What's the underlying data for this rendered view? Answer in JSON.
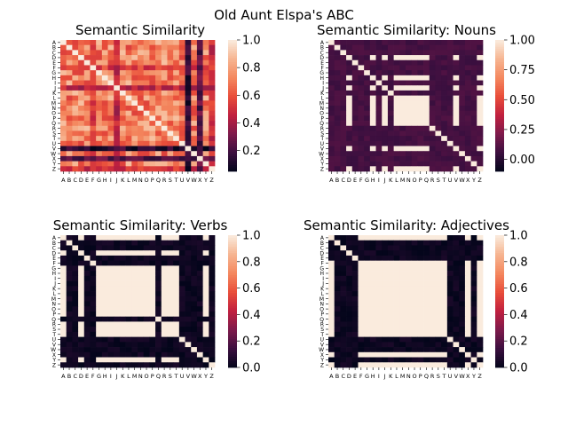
{
  "figure": {
    "title": "Old Aunt Elspa's ABC"
  },
  "letters": [
    "A",
    "B",
    "C",
    "D",
    "E",
    "F",
    "G",
    "H",
    "I",
    "J",
    "K",
    "L",
    "M",
    "N",
    "O",
    "P",
    "Q",
    "R",
    "S",
    "T",
    "U",
    "V",
    "W",
    "X",
    "Y",
    "Z"
  ],
  "colormap": {
    "name": "rocket",
    "stops": [
      "#03051a",
      "#3b0f3f",
      "#7d1a4b",
      "#c1203f",
      "#e94e3a",
      "#f4885f",
      "#f6b591",
      "#faebdd"
    ]
  },
  "chart_data": [
    {
      "type": "heatmap",
      "title": "Semantic Similarity",
      "vmin": 0.05,
      "vmax": 1.0,
      "colorbar_ticks": [
        "0.2",
        "0.4",
        "0.6",
        "0.8",
        "1.0"
      ],
      "colorbar_tick_values": [
        0.2,
        0.4,
        0.6,
        0.8,
        1.0
      ],
      "pattern": "dense",
      "base_value": 0.72,
      "low_rows": {
        "F": 0.55,
        "J": 0.45,
        "V": 0.15,
        "X": 0.25,
        "Z": 0.5
      },
      "diagonal": 1.0
    },
    {
      "type": "heatmap",
      "title": "Semantic Similarity: Nouns",
      "vmin": -0.1,
      "vmax": 1.0,
      "colorbar_ticks": [
        "0.00",
        "0.25",
        "0.50",
        "0.75",
        "1.00"
      ],
      "colorbar_tick_values": [
        0.0,
        0.25,
        0.5,
        0.75,
        1.0
      ],
      "pattern": "block",
      "dark_letters": [
        "A",
        "B",
        "C",
        "E",
        "F",
        "G",
        "I",
        "K",
        "R",
        "S",
        "T",
        "U",
        "W",
        "X",
        "Y"
      ],
      "dark_value": 0.05,
      "light_value": 1.0,
      "diagonal": 1.0
    },
    {
      "type": "heatmap",
      "title": "Semantic Similarity: Verbs",
      "vmin": 0.0,
      "vmax": 1.0,
      "colorbar_ticks": [
        "0.0",
        "0.2",
        "0.4",
        "0.6",
        "0.8",
        "1.0"
      ],
      "colorbar_tick_values": [
        0.0,
        0.2,
        0.4,
        0.6,
        0.8,
        1.0
      ],
      "pattern": "block",
      "dark_letters": [
        "B",
        "C",
        "E",
        "F",
        "Q",
        "U",
        "V",
        "W",
        "X",
        "Z"
      ],
      "dark_value": 0.0,
      "light_value": 1.0,
      "diagonal": 1.0
    },
    {
      "type": "heatmap",
      "title": "Semantic Similarity: Adjectives",
      "vmin": 0.0,
      "vmax": 1.0,
      "colorbar_ticks": [
        "0.0",
        "0.2",
        "0.4",
        "0.6",
        "0.8",
        "1.0"
      ],
      "colorbar_tick_values": [
        0.0,
        0.2,
        0.4,
        0.6,
        0.8,
        1.0
      ],
      "pattern": "block",
      "dark_letters": [
        "B",
        "C",
        "D",
        "E",
        "U",
        "V",
        "W",
        "Y"
      ],
      "dark_value": 0.0,
      "light_value": 1.0,
      "diagonal": 1.0
    }
  ]
}
